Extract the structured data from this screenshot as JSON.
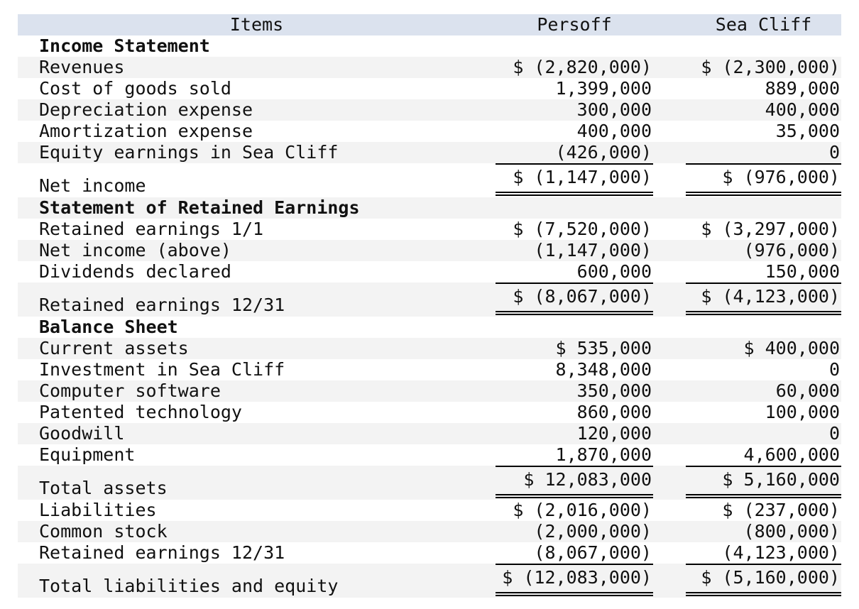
{
  "table": {
    "columns": [
      "Items",
      "Persoff",
      "Sea Cliff"
    ],
    "sections": [
      {
        "title": "Income Statement",
        "groups": [
          {
            "rows": [
              {
                "label": "Revenues",
                "values": [
                  "$ (2,820,000)",
                  "$ (2,300,000)"
                ]
              },
              {
                "label": "Cost of goods sold",
                "values": [
                  "1,399,000",
                  "889,000"
                ]
              },
              {
                "label": "Depreciation expense",
                "values": [
                  "300,000",
                  "400,000"
                ]
              },
              {
                "label": "Amortization expense",
                "values": [
                  "400,000",
                  "35,000"
                ]
              },
              {
                "label": "Equity earnings in Sea Cliff",
                "values": [
                  "(426,000)",
                  "0"
                ]
              }
            ],
            "total": {
              "label": "Net income",
              "values": [
                "$ (1,147,000)",
                "$ (976,000)"
              ]
            }
          }
        ]
      },
      {
        "title": "Statement of Retained Earnings",
        "groups": [
          {
            "rows": [
              {
                "label": "Retained earnings 1/1",
                "values": [
                  "$ (7,520,000)",
                  "$ (3,297,000)"
                ]
              },
              {
                "label": "Net income (above)",
                "values": [
                  "(1,147,000)",
                  "(976,000)"
                ]
              },
              {
                "label": "Dividends declared",
                "values": [
                  "600,000",
                  "150,000"
                ]
              }
            ],
            "total": {
              "label": "Retained earnings 12/31",
              "values": [
                "$ (8,067,000)",
                "$ (4,123,000)"
              ]
            }
          }
        ]
      },
      {
        "title": "Balance Sheet",
        "groups": [
          {
            "rows": [
              {
                "label": "Current assets",
                "values": [
                  "$ 535,000",
                  "$ 400,000"
                ]
              },
              {
                "label": "Investment in Sea Cliff",
                "values": [
                  "8,348,000",
                  "0"
                ]
              },
              {
                "label": "Computer software",
                "values": [
                  "350,000",
                  "60,000"
                ]
              },
              {
                "label": "Patented technology",
                "values": [
                  "860,000",
                  "100,000"
                ]
              },
              {
                "label": "Goodwill",
                "values": [
                  "120,000",
                  "0"
                ]
              },
              {
                "label": "Equipment",
                "values": [
                  "1,870,000",
                  "4,600,000"
                ]
              }
            ],
            "total": {
              "label": "Total assets",
              "values": [
                "$ 12,083,000",
                "$ 5,160,000"
              ]
            }
          },
          {
            "rows": [
              {
                "label": "Liabilities",
                "values": [
                  "$ (2,016,000)",
                  "$ (237,000)"
                ]
              },
              {
                "label": "Common stock",
                "values": [
                  "(2,000,000)",
                  "(800,000)"
                ]
              },
              {
                "label": "Retained earnings 12/31",
                "values": [
                  "(8,067,000)",
                  "(4,123,000)"
                ]
              }
            ],
            "total": {
              "label": "Total liabilities and equity",
              "values": [
                "$ (12,083,000)",
                "$ (5,160,000)"
              ]
            }
          }
        ]
      }
    ]
  }
}
